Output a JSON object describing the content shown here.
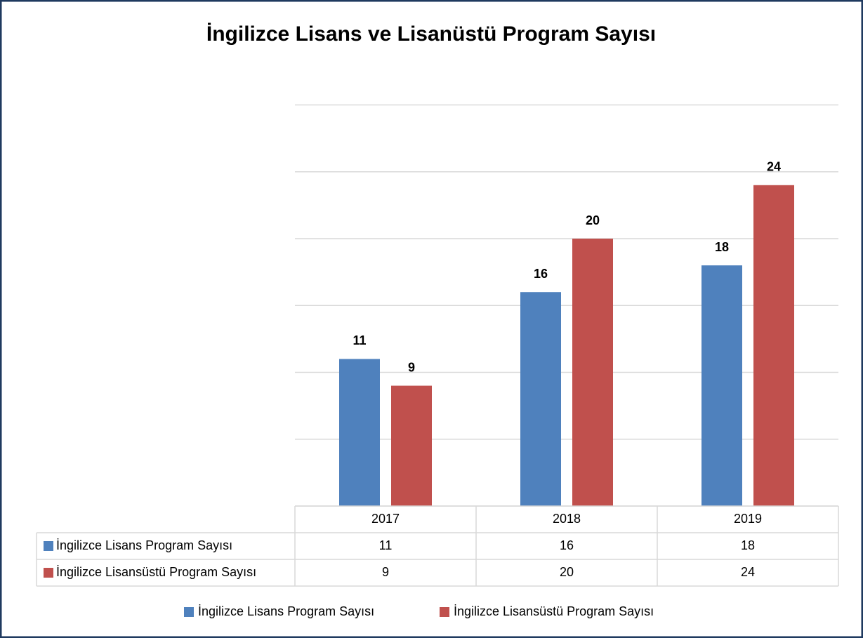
{
  "chart_data": {
    "type": "bar",
    "title": "İngilizce Lisans ve Lisanüstü Program Sayısı",
    "categories": [
      "2017",
      "2018",
      "2019"
    ],
    "series": [
      {
        "name": "İngilizce Lisans Program Sayısı",
        "color": "#4f81bd",
        "values": [
          11,
          16,
          18
        ]
      },
      {
        "name": "İngilizce Lisansüstü Program Sayısı",
        "color": "#c0504d",
        "values": [
          9,
          20,
          24
        ]
      }
    ],
    "ylim": [
      0,
      30
    ],
    "yticks": [
      0,
      5,
      10,
      15,
      20,
      25,
      30
    ],
    "grid": true,
    "legend": "bottom",
    "data_table": true
  }
}
